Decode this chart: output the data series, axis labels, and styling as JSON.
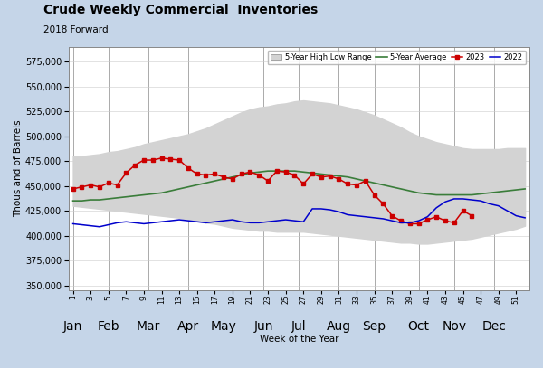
{
  "title": "Crude Weekly Commercial  Inventories",
  "subtitle": "2018 Forward",
  "xlabel": "Week of the Year",
  "ylabel": "Thous and of Barrels",
  "background_color": "#c5d5e8",
  "plot_background": "#ffffff",
  "ylim": [
    345000,
    590000
  ],
  "yticks": [
    350000,
    375000,
    400000,
    425000,
    450000,
    475000,
    500000,
    525000,
    550000,
    575000
  ],
  "week_ticks": [
    1,
    3,
    5,
    7,
    9,
    11,
    13,
    15,
    17,
    19,
    21,
    23,
    25,
    27,
    29,
    31,
    33,
    35,
    37,
    39,
    41,
    43,
    45,
    47,
    49,
    51
  ],
  "month_positions": [
    1.0,
    5.0,
    9.5,
    14.0,
    18.0,
    22.5,
    26.5,
    31.0,
    35.0,
    40.0,
    44.0,
    48.5
  ],
  "month_labels": [
    "Jan",
    "Feb",
    "Mar",
    "Apr",
    "May",
    "Jun",
    "Jul",
    "Aug",
    "Sep",
    "Oct",
    "Nov",
    "Dec"
  ],
  "five_yr_high_x": [
    1,
    2,
    3,
    4,
    5,
    6,
    7,
    8,
    9,
    10,
    11,
    12,
    13,
    14,
    15,
    16,
    17,
    18,
    19,
    20,
    21,
    22,
    23,
    24,
    25,
    26,
    27,
    28,
    29,
    30,
    31,
    32,
    33,
    34,
    35,
    36,
    37,
    38,
    39,
    40,
    41,
    42,
    43,
    44,
    45,
    46,
    47,
    48,
    49,
    50,
    51,
    52
  ],
  "five_yr_high_y": [
    480000,
    480000,
    481000,
    482000,
    484000,
    485000,
    487000,
    489000,
    492000,
    494000,
    496000,
    498000,
    500000,
    502000,
    505000,
    508000,
    512000,
    516000,
    520000,
    524000,
    527000,
    529000,
    530000,
    532000,
    533000,
    535000,
    536000,
    535000,
    534000,
    533000,
    531000,
    529000,
    527000,
    524000,
    521000,
    517000,
    513000,
    509000,
    504000,
    500000,
    497000,
    494000,
    492000,
    490000,
    488000,
    487000,
    487000,
    487000,
    487000,
    488000,
    488000,
    488000
  ],
  "five_yr_low_y": [
    430000,
    429000,
    428000,
    427000,
    426000,
    425000,
    424000,
    423000,
    422000,
    421000,
    420000,
    419000,
    418000,
    416000,
    415000,
    413000,
    412000,
    410000,
    408000,
    407000,
    406000,
    405000,
    405000,
    404000,
    404000,
    404000,
    404000,
    403000,
    402000,
    401000,
    400000,
    399000,
    398000,
    397000,
    396000,
    395000,
    394000,
    393000,
    393000,
    392000,
    392000,
    393000,
    394000,
    395000,
    396000,
    397000,
    399000,
    401000,
    403000,
    405000,
    407000,
    410000
  ],
  "five_yr_avg_x": [
    1,
    2,
    3,
    4,
    5,
    6,
    7,
    8,
    9,
    10,
    11,
    12,
    13,
    14,
    15,
    16,
    17,
    18,
    19,
    20,
    21,
    22,
    23,
    24,
    25,
    26,
    27,
    28,
    29,
    30,
    31,
    32,
    33,
    34,
    35,
    36,
    37,
    38,
    39,
    40,
    41,
    42,
    43,
    44,
    45,
    46,
    47,
    48,
    49,
    50,
    51,
    52
  ],
  "five_yr_avg_y": [
    435000,
    435000,
    436000,
    436000,
    437000,
    438000,
    439000,
    440000,
    441000,
    442000,
    443000,
    445000,
    447000,
    449000,
    451000,
    453000,
    455000,
    457000,
    459000,
    461000,
    463000,
    464000,
    465000,
    465000,
    465000,
    465000,
    464000,
    463000,
    462000,
    461000,
    460000,
    459000,
    457000,
    455000,
    453000,
    451000,
    449000,
    447000,
    445000,
    443000,
    442000,
    441000,
    441000,
    441000,
    441000,
    441000,
    442000,
    443000,
    444000,
    445000,
    446000,
    447000
  ],
  "data_2023_x": [
    1,
    2,
    3,
    4,
    5,
    6,
    7,
    8,
    9,
    10,
    11,
    12,
    13,
    14,
    15,
    16,
    17,
    18,
    19,
    20,
    21,
    22,
    23,
    24,
    25,
    26,
    27,
    28,
    29,
    30,
    31,
    32,
    33,
    34,
    35,
    36,
    37,
    38,
    39,
    40,
    41,
    42,
    43,
    44,
    45,
    46
  ],
  "data_2023_y": [
    447000,
    449000,
    451000,
    449000,
    453000,
    451000,
    463000,
    471000,
    476000,
    476000,
    478000,
    477000,
    476000,
    468000,
    462000,
    461000,
    462000,
    459000,
    457000,
    462000,
    464000,
    461000,
    455000,
    465000,
    464000,
    461000,
    452000,
    462000,
    459000,
    460000,
    457000,
    452000,
    451000,
    455000,
    441000,
    432000,
    420000,
    415000,
    412000,
    412000,
    416000,
    419000,
    415000,
    413000,
    425000,
    420000
  ],
  "data_2022_x": [
    1,
    2,
    3,
    4,
    5,
    6,
    7,
    8,
    9,
    10,
    11,
    12,
    13,
    14,
    15,
    16,
    17,
    18,
    19,
    20,
    21,
    22,
    23,
    24,
    25,
    26,
    27,
    28,
    29,
    30,
    31,
    32,
    33,
    34,
    35,
    36,
    37,
    38,
    39,
    40,
    41,
    42,
    43,
    44,
    45,
    46,
    47,
    48,
    49,
    50,
    51,
    52
  ],
  "data_2022_y": [
    412000,
    411000,
    410000,
    409000,
    411000,
    413000,
    414000,
    413000,
    412000,
    413000,
    414000,
    415000,
    416000,
    415000,
    414000,
    413000,
    414000,
    415000,
    416000,
    414000,
    413000,
    413000,
    414000,
    415000,
    416000,
    415000,
    414000,
    427000,
    427000,
    426000,
    424000,
    421000,
    420000,
    419000,
    418000,
    417000,
    415000,
    413000,
    413000,
    415000,
    419000,
    428000,
    434000,
    437000,
    437000,
    436000,
    435000,
    432000,
    430000,
    425000,
    420000,
    418000
  ],
  "range_color": "#d3d3d3",
  "avg_color": "#3a7d3a",
  "color_2023": "#cc0000",
  "color_2022": "#0000cc"
}
